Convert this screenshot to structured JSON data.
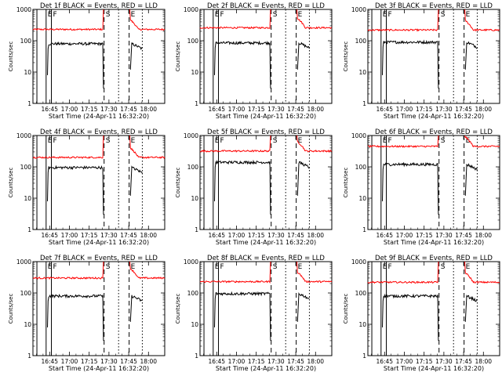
{
  "common": {
    "y_label": "Counts/sec",
    "x_label": "Start Time (24-Apr-11 16:32:20)",
    "x_tick_labels": [
      "16:45",
      "17:00",
      "17:15",
      "17:30",
      "17:45",
      "18:00"
    ],
    "y_tick_labels": [
      "1",
      "10",
      "100",
      "1000"
    ],
    "marker_labels": [
      "E",
      "F",
      "S",
      "E"
    ],
    "colors": {
      "events": "#000000",
      "lld": "#ff0000",
      "axes": "#000000"
    }
  },
  "chart_data": [
    {
      "type": "line",
      "title": "Det 1f BLACK = Events, RED = LLD",
      "x_axis": "time (minutes after 16:32:20)",
      "xlim": [
        0,
        100
      ],
      "ylim": [
        1,
        1000
      ],
      "y_scale": "log",
      "x_ticks": [
        12.67,
        27.67,
        42.67,
        57.67,
        72.67,
        87.67
      ],
      "series": [
        {
          "name": "Events",
          "values_level": 80
        },
        {
          "name": "LLD",
          "values_level": 230
        }
      ],
      "markers": [
        {
          "label": "E",
          "x": 10,
          "style": "solid"
        },
        {
          "label": "F",
          "x": 14,
          "style": "solid"
        },
        {
          "label": "S",
          "x": 54,
          "style": "dashed"
        },
        {
          "label": "E",
          "x": 73,
          "style": "dashed"
        }
      ]
    },
    {
      "type": "line",
      "title": "Det 2f BLACK = Events, RED = LLD",
      "xlim": [
        0,
        100
      ],
      "ylim": [
        1,
        1000
      ],
      "y_scale": "log",
      "series": [
        {
          "name": "Events",
          "values_level": 85
        },
        {
          "name": "LLD",
          "values_level": 260
        }
      ],
      "markers": [
        {
          "label": "E",
          "x": 10,
          "style": "solid"
        },
        {
          "label": "F",
          "x": 14,
          "style": "solid"
        },
        {
          "label": "S",
          "x": 54,
          "style": "dashed"
        },
        {
          "label": "E",
          "x": 73,
          "style": "dashed"
        }
      ]
    },
    {
      "type": "line",
      "title": "Det 3f BLACK = Events, RED = LLD",
      "xlim": [
        0,
        100
      ],
      "ylim": [
        1,
        1000
      ],
      "y_scale": "log",
      "series": [
        {
          "name": "Events",
          "values_level": 90
        },
        {
          "name": "LLD",
          "values_level": 220
        }
      ],
      "markers": [
        {
          "label": "E",
          "x": 10,
          "style": "solid"
        },
        {
          "label": "F",
          "x": 14,
          "style": "solid"
        },
        {
          "label": "S",
          "x": 54,
          "style": "dashed"
        },
        {
          "label": "E",
          "x": 73,
          "style": "dashed"
        }
      ]
    },
    {
      "type": "line",
      "title": "Det 4f BLACK = Events, RED = LLD",
      "xlim": [
        0,
        100
      ],
      "ylim": [
        1,
        1000
      ],
      "y_scale": "log",
      "series": [
        {
          "name": "Events",
          "values_level": 95
        },
        {
          "name": "LLD",
          "values_level": 200
        }
      ],
      "markers": [
        {
          "label": "E",
          "x": 10,
          "style": "solid"
        },
        {
          "label": "F",
          "x": 14,
          "style": "solid"
        },
        {
          "label": "S",
          "x": 54,
          "style": "dashed"
        },
        {
          "label": "E",
          "x": 73,
          "style": "dashed"
        }
      ]
    },
    {
      "type": "line",
      "title": "Det 5f BLACK = Events, RED = LLD",
      "xlim": [
        0,
        100
      ],
      "ylim": [
        1,
        1000
      ],
      "y_scale": "log",
      "series": [
        {
          "name": "Events",
          "values_level": 140
        },
        {
          "name": "LLD",
          "values_level": 320
        }
      ],
      "markers": [
        {
          "label": "E",
          "x": 10,
          "style": "solid"
        },
        {
          "label": "F",
          "x": 14,
          "style": "solid"
        },
        {
          "label": "S",
          "x": 54,
          "style": "dashed"
        },
        {
          "label": "E",
          "x": 73,
          "style": "dashed"
        }
      ]
    },
    {
      "type": "line",
      "title": "Det 6f BLACK = Events, RED = LLD",
      "xlim": [
        0,
        100
      ],
      "ylim": [
        1,
        1000
      ],
      "y_scale": "log",
      "series": [
        {
          "name": "Events",
          "values_level": 120
        },
        {
          "name": "LLD",
          "values_level": 450
        }
      ],
      "markers": [
        {
          "label": "E",
          "x": 10,
          "style": "solid"
        },
        {
          "label": "F",
          "x": 14,
          "style": "solid"
        },
        {
          "label": "S",
          "x": 54,
          "style": "dashed"
        },
        {
          "label": "E",
          "x": 73,
          "style": "dashed"
        }
      ]
    },
    {
      "type": "line",
      "title": "Det 7f BLACK = Events, RED = LLD",
      "xlim": [
        0,
        100
      ],
      "ylim": [
        1,
        1000
      ],
      "y_scale": "log",
      "series": [
        {
          "name": "Events",
          "values_level": 80
        },
        {
          "name": "LLD",
          "values_level": 300
        }
      ],
      "markers": [
        {
          "label": "E",
          "x": 10,
          "style": "solid"
        },
        {
          "label": "F",
          "x": 14,
          "style": "solid"
        },
        {
          "label": "S",
          "x": 54,
          "style": "dashed"
        },
        {
          "label": "E",
          "x": 73,
          "style": "dashed"
        }
      ]
    },
    {
      "type": "line",
      "title": "Det 8f BLACK = Events, RED = LLD",
      "xlim": [
        0,
        100
      ],
      "ylim": [
        1,
        1000
      ],
      "y_scale": "log",
      "series": [
        {
          "name": "Events",
          "values_level": 95
        },
        {
          "name": "LLD",
          "values_level": 230
        }
      ],
      "markers": [
        {
          "label": "E",
          "x": 10,
          "style": "solid"
        },
        {
          "label": "F",
          "x": 14,
          "style": "solid"
        },
        {
          "label": "S",
          "x": 54,
          "style": "dashed"
        },
        {
          "label": "E",
          "x": 73,
          "style": "dashed"
        }
      ]
    },
    {
      "type": "line",
      "title": "Det 9f BLACK = Events, RED = LLD",
      "xlim": [
        0,
        100
      ],
      "ylim": [
        1,
        1000
      ],
      "y_scale": "log",
      "series": [
        {
          "name": "Events",
          "values_level": 80
        },
        {
          "name": "LLD",
          "values_level": 220
        }
      ],
      "markers": [
        {
          "label": "E",
          "x": 10,
          "style": "solid"
        },
        {
          "label": "F",
          "x": 14,
          "style": "solid"
        },
        {
          "label": "S",
          "x": 54,
          "style": "dashed"
        },
        {
          "label": "E",
          "x": 73,
          "style": "dashed"
        }
      ]
    }
  ]
}
